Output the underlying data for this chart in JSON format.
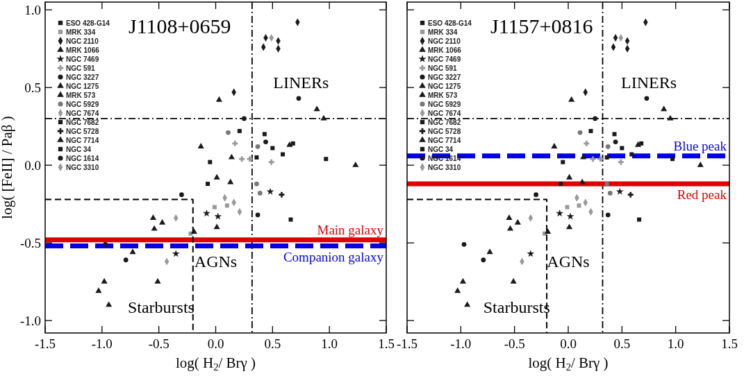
{
  "chart_data": [
    {
      "type": "scatter",
      "title": "J1108+0659",
      "xlabel": "log( H$_{2}$/ Brγ )",
      "ylabel": "log( [FeII] / Paβ )",
      "xlim": [
        -1.5,
        1.5
      ],
      "ylim": [
        -1.08,
        1.05
      ],
      "xticks": [
        {
          "value": -1.5,
          "label": "-1.5"
        },
        {
          "value": -1,
          "label": "-1.0"
        },
        {
          "value": -0.5,
          "label": "-0.5"
        },
        {
          "value": 0,
          "label": "0.0"
        },
        {
          "value": 0.5,
          "label": "0.5"
        },
        {
          "value": 1,
          "label": "1.0"
        },
        {
          "value": 1.5,
          "label": "1.5"
        }
      ],
      "yticks": [
        {
          "value": -1,
          "label": "-1.0"
        },
        {
          "value": -0.5,
          "label": "-0.5"
        },
        {
          "value": 0,
          "label": "0.0"
        },
        {
          "value": 0.5,
          "label": "0.5"
        },
        {
          "value": 1,
          "label": "1.0"
        }
      ],
      "legend": "top left",
      "series": [
        {
          "name": "ESO 428-G14",
          "color": "#1a1a1a",
          "marker": "square",
          "x": [
            0.21,
            0.97,
            -0.05
          ],
          "values": [
            0.22,
            0.04,
            0.02
          ]
        },
        {
          "name": "MRK 334",
          "color": "#999999",
          "marker": "square",
          "x": [
            -0.01,
            0.1,
            -0.22
          ],
          "values": [
            -0.27,
            -0.26,
            -0.44
          ]
        },
        {
          "name": "NGC 2110",
          "color": "#1a1a1a",
          "marker": "diamond",
          "x": [
            0.72,
            0.44,
            0.55,
            0.42,
            0.55,
            0.16
          ],
          "values": [
            0.92,
            0.82,
            0.8,
            0.76,
            0.75,
            0.47
          ]
        },
        {
          "name": "MRK 1066",
          "color": "#1a1a1a",
          "marker": "triangle",
          "x": [
            0.03,
            0.01,
            -0.13
          ],
          "values": [
            0.42,
            -0.08,
            0.12
          ]
        },
        {
          "name": "NGC 7469",
          "color": "#1a1a1a",
          "marker": "star",
          "x": [
            0.48,
            0.02,
            -0.08,
            -0.35
          ],
          "values": [
            -0.17,
            -0.33,
            -0.31,
            -0.57
          ]
        },
        {
          "name": "NGC 591",
          "color": "#999999",
          "marker": "cross",
          "x": [
            0.17,
            0.23,
            0.49,
            0.3
          ],
          "values": [
            0.14,
            0.04,
            0.02,
            0.04
          ]
        },
        {
          "name": "NGC 3227",
          "color": "#1a1a1a",
          "marker": "circle",
          "x": [
            0.73,
            0.44,
            0.25
          ],
          "values": [
            0.43,
            0.15,
            0.3
          ]
        },
        {
          "name": "NGC 1275",
          "color": "#1a1a1a",
          "marker": "triangle",
          "x": [
            0.89,
            0.65
          ],
          "values": [
            0.36,
            0.13
          ]
        },
        {
          "name": "MRK 573",
          "color": "#1a1a1a",
          "marker": "triangle",
          "x": [
            0.95,
            1.23,
            0.14,
            0.13,
            -0.19
          ],
          "values": [
            0.3,
            0.0,
            0.05,
            -0.11,
            -0.43
          ]
        },
        {
          "name": "NGC 5929",
          "color": "#777777",
          "marker": "circle",
          "x": [
            0.11,
            0.37,
            0.36,
            0.39
          ],
          "values": [
            0.21,
            0.12,
            -0.12,
            -0.18
          ]
        },
        {
          "name": "NGC 7674",
          "color": "#999999",
          "marker": "diamond",
          "x": [
            0.08,
            0.16,
            0.21
          ],
          "values": [
            -0.21,
            -0.24,
            -0.3
          ]
        },
        {
          "name": "NGC 7682",
          "color": "#1a1a1a",
          "marker": "square",
          "x": [
            -0.07,
            0.66
          ],
          "values": [
            -0.12,
            -0.35
          ]
        },
        {
          "name": "NGC 5728",
          "color": "#1a1a1a",
          "marker": "cross",
          "x": [
            0.58
          ],
          "values": [
            -0.19
          ]
        },
        {
          "name": "NGC 7714",
          "color": "#1a1a1a",
          "marker": "triangle",
          "x": [
            -0.55,
            -0.47,
            -0.54,
            -0.73,
            -0.98,
            -1.03,
            -0.94,
            -0.51,
            0.01
          ],
          "values": [
            -0.34,
            -0.37,
            -0.41,
            -0.56,
            -0.75,
            -0.81,
            -0.9,
            -0.75,
            -0.4
          ]
        },
        {
          "name": "NGC 34",
          "color": "#1a1a1a",
          "marker": "square",
          "x": [
            0.43,
            0.5,
            0.59,
            0.36,
            0.68
          ],
          "values": [
            0.2,
            0.11,
            0.07,
            0.05,
            0.14
          ]
        },
        {
          "name": "NGC 1614",
          "color": "#1a1a1a",
          "marker": "circle",
          "x": [
            -0.3,
            -0.97,
            -0.79,
            0.37
          ],
          "values": [
            -0.19,
            -0.51,
            -0.61,
            -0.32
          ]
        },
        {
          "name": "NGC 3310",
          "color": "#999999",
          "marker": "diamond",
          "x": [
            0.49,
            -0.43,
            -0.35
          ],
          "values": [
            0.82,
            -0.62,
            -0.34
          ]
        },
        {
          "type": "line",
          "color": "#000000",
          "line_style": "dashed",
          "x": [
            -1.5,
            -0.2,
            -0.2
          ],
          "values": [
            -0.22,
            -0.22,
            -1.08
          ]
        }
      ],
      "ref_lines": [
        {
          "axis": "x",
          "value": 0.32,
          "color": "#000000",
          "line_style": "dashed"
        },
        {
          "axis": "y",
          "value": 0.3,
          "color": "#000000",
          "line_style": "dashed"
        },
        {
          "axis": "y",
          "value": -0.48,
          "color": "#e00000",
          "line_style": "solid",
          "label": "Main galaxy"
        },
        {
          "axis": "y",
          "value": -0.52,
          "color": "#0000e6",
          "line_style": "dashed",
          "label": "Companion galaxy"
        }
      ],
      "annotations": [
        "LINERs",
        "AGNs",
        "Starbursts"
      ]
    },
    {
      "type": "scatter",
      "title": "J1157+0816",
      "xlabel": "log( H$_{2}$/ Brγ )",
      "xlim": [
        -1.5,
        1.5
      ],
      "ylim": [
        -1.08,
        1.05
      ],
      "tick_labels": "x",
      "xticks": [
        {
          "value": -1.5,
          "label": "-1.5"
        },
        {
          "value": -1,
          "label": "-1.0"
        },
        {
          "value": -0.5,
          "label": "-0.5"
        },
        {
          "value": 0,
          "label": "0.0"
        },
        {
          "value": 0.5,
          "label": "0.5"
        },
        {
          "value": 1,
          "label": "1.0"
        },
        {
          "value": 1.5,
          "label": "1.5"
        }
      ],
      "yticks": [
        {
          "value": -1,
          "label": null
        },
        {
          "value": -0.5,
          "label": null
        },
        {
          "value": 0,
          "label": null
        },
        {
          "value": 0.5,
          "label": null
        },
        {
          "value": 1,
          "label": null
        }
      ],
      "legend": "top left",
      "series": [
        {
          "name": "ESO 428-G14",
          "color": "#1a1a1a",
          "marker": "square",
          "x": [
            0.21,
            0.97,
            -0.05
          ],
          "values": [
            0.22,
            0.04,
            0.02
          ]
        },
        {
          "name": "MRK 334",
          "color": "#999999",
          "marker": "square",
          "x": [
            -0.01,
            0.1,
            -0.22
          ],
          "values": [
            -0.27,
            -0.26,
            -0.44
          ]
        },
        {
          "name": "NGC 2110",
          "color": "#1a1a1a",
          "marker": "diamond",
          "x": [
            0.72,
            0.44,
            0.55,
            0.42,
            0.55,
            0.16
          ],
          "values": [
            0.92,
            0.82,
            0.8,
            0.76,
            0.75,
            0.47
          ]
        },
        {
          "name": "MRK 1066",
          "color": "#1a1a1a",
          "marker": "triangle",
          "x": [
            0.03,
            0.01,
            -0.13
          ],
          "values": [
            0.42,
            -0.08,
            0.12
          ]
        },
        {
          "name": "NGC 7469",
          "color": "#1a1a1a",
          "marker": "star",
          "x": [
            0.48,
            0.02,
            -0.08,
            -0.35
          ],
          "values": [
            -0.17,
            -0.33,
            -0.31,
            -0.57
          ]
        },
        {
          "name": "NGC 591",
          "color": "#999999",
          "marker": "cross",
          "x": [
            0.17,
            0.23,
            0.49,
            0.3
          ],
          "values": [
            0.14,
            0.04,
            0.02,
            0.04
          ]
        },
        {
          "name": "NGC 3227",
          "color": "#1a1a1a",
          "marker": "circle",
          "x": [
            0.73,
            0.44,
            0.25
          ],
          "values": [
            0.43,
            0.15,
            0.3
          ]
        },
        {
          "name": "NGC 1275",
          "color": "#1a1a1a",
          "marker": "triangle",
          "x": [
            0.89,
            0.65
          ],
          "values": [
            0.36,
            0.13
          ]
        },
        {
          "name": "MRK 573",
          "color": "#1a1a1a",
          "marker": "triangle",
          "x": [
            0.95,
            1.23,
            0.14,
            0.13,
            -0.19
          ],
          "values": [
            0.3,
            0.0,
            0.05,
            -0.11,
            -0.43
          ]
        },
        {
          "name": "NGC 5929",
          "color": "#777777",
          "marker": "circle",
          "x": [
            0.11,
            0.37,
            0.36,
            0.39
          ],
          "values": [
            0.21,
            0.12,
            -0.12,
            -0.18
          ]
        },
        {
          "name": "NGC 7674",
          "color": "#999999",
          "marker": "diamond",
          "x": [
            0.08,
            0.16,
            0.21
          ],
          "values": [
            -0.21,
            -0.24,
            -0.3
          ]
        },
        {
          "name": "NGC 7682",
          "color": "#1a1a1a",
          "marker": "square",
          "x": [
            -0.07,
            0.66
          ],
          "values": [
            -0.12,
            -0.35
          ]
        },
        {
          "name": "NGC 5728",
          "color": "#1a1a1a",
          "marker": "cross",
          "x": [
            0.58
          ],
          "values": [
            -0.19
          ]
        },
        {
          "name": "NGC 7714",
          "color": "#1a1a1a",
          "marker": "triangle",
          "x": [
            -0.55,
            -0.47,
            -0.54,
            -0.73,
            -0.98,
            -1.03,
            -0.94,
            -0.51,
            0.01
          ],
          "values": [
            -0.34,
            -0.37,
            -0.41,
            -0.56,
            -0.75,
            -0.81,
            -0.9,
            -0.75,
            -0.4
          ]
        },
        {
          "name": "NGC 34",
          "color": "#1a1a1a",
          "marker": "square",
          "x": [
            0.43,
            0.5,
            0.59,
            0.36,
            0.68
          ],
          "values": [
            0.2,
            0.11,
            0.07,
            0.05,
            0.14
          ]
        },
        {
          "name": "NGC 1614",
          "color": "#1a1a1a",
          "marker": "circle",
          "x": [
            -0.3,
            -0.97,
            -0.79,
            0.37
          ],
          "values": [
            -0.19,
            -0.51,
            -0.61,
            -0.32
          ]
        },
        {
          "name": "NGC 3310",
          "color": "#999999",
          "marker": "diamond",
          "x": [
            0.49,
            -0.43,
            -0.35
          ],
          "values": [
            0.82,
            -0.62,
            -0.34
          ]
        },
        {
          "type": "line",
          "color": "#000000",
          "line_style": "dashed",
          "x": [
            -1.5,
            -0.2,
            -0.2
          ],
          "values": [
            -0.22,
            -0.22,
            -1.08
          ]
        }
      ],
      "ref_lines": [
        {
          "axis": "x",
          "value": 0.32,
          "color": "#000000",
          "line_style": "dashed"
        },
        {
          "axis": "y",
          "value": 0.3,
          "color": "#000000",
          "line_style": "dashed"
        },
        {
          "axis": "y",
          "value": 0.06,
          "color": "#0000e6",
          "line_style": "dashed",
          "label": "Blue peak"
        },
        {
          "axis": "y",
          "value": -0.12,
          "color": "#e00000",
          "line_style": "solid",
          "label": "Red peak"
        }
      ],
      "annotations": [
        "LINERs",
        "AGNs",
        "Starbursts"
      ]
    }
  ]
}
